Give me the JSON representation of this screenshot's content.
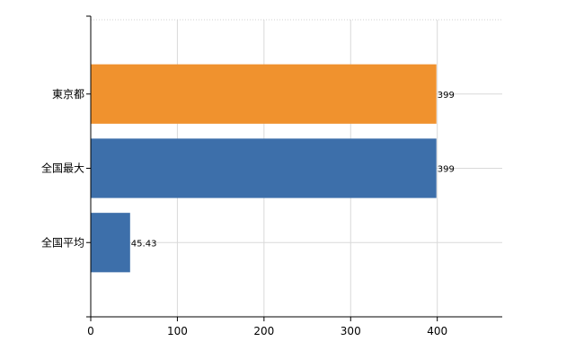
{
  "chart_data": {
    "type": "bar",
    "orientation": "horizontal",
    "categories": [
      "東京都",
      "全国最大",
      "全国平均"
    ],
    "values": [
      399,
      399,
      45.43
    ],
    "data_labels": [
      "399",
      "399",
      "45.43"
    ],
    "bar_colors": [
      "#f0922e",
      "#3d6faa"
    ],
    "xlim": [
      0,
      475
    ],
    "x_ticks": [
      0,
      100,
      200,
      300,
      400
    ],
    "x_tick_labels": [
      "0",
      "100",
      "200",
      "300",
      "400"
    ],
    "grid": true,
    "title": "",
    "xlabel": "",
    "ylabel": ""
  }
}
